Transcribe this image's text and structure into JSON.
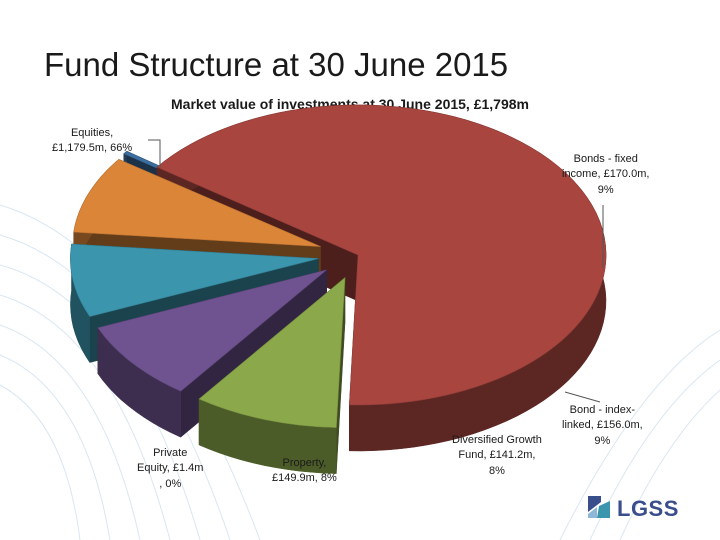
{
  "title": "Fund Structure at 30 June 2015",
  "colors": {
    "equities": "#A8453F",
    "bonds_fixed": "#8BA84A",
    "bonds_index": "#6F5390",
    "diversified": "#3B95AD",
    "property": "#DB8539",
    "private_equity": "#3D6EA0",
    "logo": "#3A4E8C"
  },
  "logo": {
    "text": "LGSS",
    "icon": "lgss-logo-icon"
  },
  "labels": {
    "equities": [
      "Equities,",
      "£1,179.5m, 66%"
    ],
    "bonds_fixed": [
      "Bonds - fixed",
      "income, £170.0m,",
      "9%"
    ],
    "bonds_index": [
      "Bond - index-",
      "linked, £156.0m,",
      "9%"
    ],
    "diversified": [
      "Diversified Growth",
      "Fund, £141.2m,",
      "8%"
    ],
    "property": [
      "Property,",
      "£149.9m, 8%"
    ],
    "private_equity": [
      "Private",
      "Equity, £1.4m",
      ", 0%"
    ]
  },
  "chart_data": {
    "type": "pie",
    "style": "3d-exploded",
    "title": "Market value of investments at 30 June 2015, £1,798m",
    "unit": "£m",
    "categories": [
      "Equities",
      "Bonds - fixed income",
      "Bond - index-linked",
      "Diversified Growth Fund",
      "Property",
      "Private Equity"
    ],
    "values": [
      1179.5,
      170.0,
      156.0,
      141.2,
      149.9,
      1.4
    ],
    "percentages": [
      66,
      9,
      9,
      8,
      8,
      0
    ],
    "legend": "none"
  }
}
